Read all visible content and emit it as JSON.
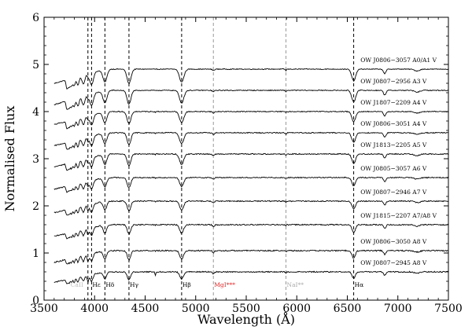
{
  "chart_data": {
    "type": "line",
    "xlabel": "Wavelength (Å)",
    "ylabel": "Normalised Flux",
    "xlim": [
      3500,
      7500
    ],
    "ylim": [
      0,
      6
    ],
    "x_ticks": [
      "3500",
      "4000",
      "4500",
      "5000",
      "5500",
      "6000",
      "6500",
      "7000",
      "7500"
    ],
    "y_ticks": [
      "0",
      "1",
      "2",
      "3",
      "4",
      "5",
      "6"
    ],
    "grid": false,
    "spectra": [
      {
        "label": "OW J0806−3057 A0/A1 V",
        "offset": 4.9,
        "continuum": 0.55
      },
      {
        "label": "OW J0807−2956 A3 V",
        "offset": 4.45,
        "continuum": 0.55
      },
      {
        "label": "OW J1807−2209 A4 V",
        "offset": 4.0,
        "continuum": 0.5
      },
      {
        "label": "OW J0806−3051 A4 V",
        "offset": 3.55,
        "continuum": 0.5
      },
      {
        "label": "OW J1813−2205 A5 V",
        "offset": 3.1,
        "continuum": 0.5
      },
      {
        "label": "OW J0805−3057 A6 V",
        "offset": 2.6,
        "continuum": 0.45
      },
      {
        "label": "OW J0807−2946 A7 V",
        "offset": 2.1,
        "continuum": 0.45
      },
      {
        "label": "OW J1815−2207 A7/A8 V",
        "offset": 1.6,
        "continuum": 0.45
      },
      {
        "label": "OW J0806−3050 A8 V",
        "offset": 1.05,
        "continuum": 0.45
      },
      {
        "label": "OW J0807−2945 A8 V",
        "offset": 0.6,
        "continuum": 0.4
      }
    ],
    "lines": [
      {
        "name": "CaII",
        "wavelength": 3934,
        "style": "dashed",
        "color": "#000000",
        "text_color": "#bbbbbb",
        "label": "CaII"
      },
      {
        "name": "Hε",
        "wavelength": 3970,
        "style": "dashed",
        "color": "#000000",
        "text_color": "#000000",
        "label": "Hε"
      },
      {
        "name": "Hδ",
        "wavelength": 4102,
        "style": "dashed",
        "color": "#000000",
        "text_color": "#000000",
        "label": "Hδ"
      },
      {
        "name": "Hγ",
        "wavelength": 4340,
        "style": "dashed",
        "color": "#000000",
        "text_color": "#000000",
        "label": "Hγ"
      },
      {
        "name": "Hβ",
        "wavelength": 4861,
        "style": "dashed",
        "color": "#000000",
        "text_color": "#000000",
        "label": "Hβ"
      },
      {
        "name": "MgI",
        "wavelength": 5175,
        "style": "dashed",
        "color": "#999999",
        "text_color": "#e02020",
        "label": "MgI***"
      },
      {
        "name": "NaI",
        "wavelength": 5893,
        "style": "dashed",
        "color": "#999999",
        "text_color": "#aaaaaa",
        "label": "NaI**"
      },
      {
        "name": "Hα",
        "wavelength": 6563,
        "style": "dashed",
        "color": "#000000",
        "text_color": "#000000",
        "label": "Hα"
      }
    ]
  }
}
